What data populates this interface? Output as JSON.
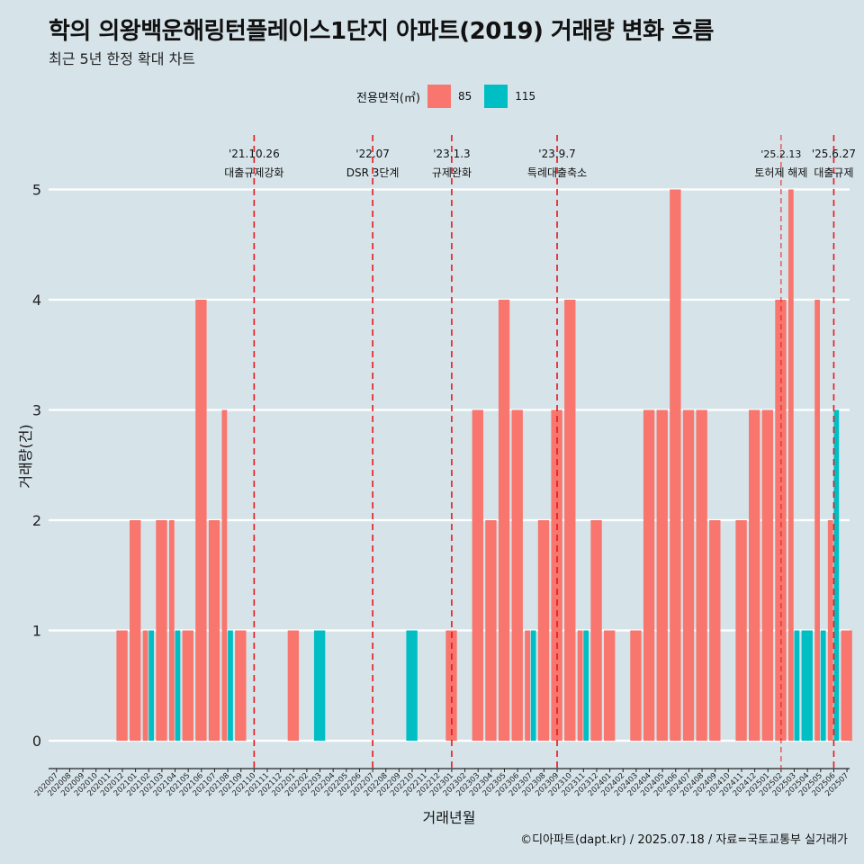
{
  "title": "학의 의왕백운해링턴플레이스1단지 아파트(2019) 거래량 변화 흐름",
  "subtitle": "최근 5년 한정 확대 차트",
  "caption": "©디아파트(dapt.kr) / 2025.07.18 / 자료=국토교통부 실거래가",
  "legend": {
    "title": "전용면적(㎡)",
    "items": [
      {
        "label": "85",
        "color": "#F8766D"
      },
      {
        "label": "115",
        "color": "#00BFC4"
      }
    ]
  },
  "chart_data": {
    "type": "bar",
    "title": "학의 의왕백운해링턴플레이스1단지 아파트(2019) 거래량 변화 흐름",
    "xlabel": "거래년월",
    "ylabel": "거래량(건)",
    "ylim": [
      0,
      5
    ],
    "yticks": [
      0,
      1,
      2,
      3,
      4,
      5
    ],
    "categories": [
      "202007",
      "202008",
      "202009",
      "202010",
      "202011",
      "202012",
      "202101",
      "202102",
      "202103",
      "202104",
      "202105",
      "202106",
      "202107",
      "202108",
      "202109",
      "202110",
      "202111",
      "202112",
      "202201",
      "202202",
      "202203",
      "202204",
      "202205",
      "202206",
      "202207",
      "202208",
      "202209",
      "202210",
      "202211",
      "202212",
      "202301",
      "202302",
      "202303",
      "202304",
      "202305",
      "202306",
      "202307",
      "202308",
      "202309",
      "202310",
      "202311",
      "202312",
      "202401",
      "202402",
      "202403",
      "202404",
      "202405",
      "202406",
      "202407",
      "202408",
      "202409",
      "202410",
      "202411",
      "202412",
      "202501",
      "202502",
      "202503",
      "202504",
      "202505",
      "202506",
      "202507"
    ],
    "series": [
      {
        "name": "85",
        "color": "#F8766D",
        "values": [
          0,
          0,
          0,
          0,
          0,
          1,
          2,
          1,
          2,
          2,
          1,
          4,
          2,
          3,
          1,
          0,
          0,
          0,
          1,
          0,
          0,
          0,
          0,
          0,
          0,
          0,
          0,
          0,
          0,
          0,
          1,
          0,
          3,
          2,
          4,
          3,
          1,
          2,
          3,
          4,
          1,
          2,
          1,
          0,
          1,
          3,
          3,
          5,
          3,
          3,
          2,
          0,
          2,
          3,
          3,
          4,
          5,
          0,
          4,
          2,
          1
        ]
      },
      {
        "name": "115",
        "color": "#00BFC4",
        "values": [
          0,
          0,
          0,
          0,
          0,
          0,
          0,
          1,
          0,
          1,
          0,
          0,
          0,
          1,
          0,
          0,
          0,
          0,
          0,
          0,
          1,
          0,
          0,
          0,
          0,
          0,
          0,
          1,
          0,
          0,
          0,
          0,
          0,
          0,
          0,
          0,
          1,
          0,
          0,
          0,
          1,
          0,
          0,
          0,
          0,
          0,
          0,
          0,
          0,
          0,
          0,
          0,
          0,
          0,
          0,
          0,
          1,
          1,
          1,
          3,
          0
        ]
      }
    ],
    "events": [
      {
        "date": "'21.10.26",
        "label": "대출규제강화",
        "category": "202110",
        "style": "dashed"
      },
      {
        "date": "'22.07",
        "label": "DSR 3단계",
        "category": "202207",
        "style": "dashed"
      },
      {
        "date": "'23.1.3",
        "label": "규제완화",
        "category": "202301",
        "style": "dashed"
      },
      {
        "date": "'23.9.7",
        "label": "특례대출축소",
        "category": "202309",
        "style": "dashed"
      },
      {
        "date": "'25.2.13",
        "label": "토허제 해제",
        "category": "202502",
        "style": "thin"
      },
      {
        "date": "'25.6.27",
        "label": "대출규제",
        "category": "202506",
        "style": "dashed"
      }
    ]
  }
}
